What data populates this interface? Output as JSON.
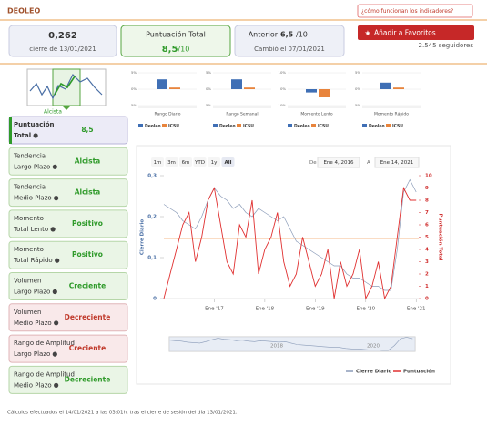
{
  "header": {
    "title": "DEOLEO",
    "help_link": "¿cómo funcionan los indicadores?"
  },
  "summary": {
    "close": "0,262",
    "close_date": "cierre de 13/01/2021",
    "score_label": "Puntuación Total",
    "score": "8,5",
    "score_max": "/10",
    "previous_label": "Anterior",
    "previous": "6,5",
    "previous_max": "/10",
    "changed": "Cambió el 07/01/2021"
  },
  "favorite_button": "Añadir a Favoritos",
  "followers": "2.545 seguidores",
  "trend_icon_label": "Alcista",
  "indicators": [
    {
      "name": [
        "Puntuación",
        "Total"
      ],
      "value": "8,5",
      "color": "#2f9a2a"
    },
    {
      "name": [
        "Tendencia",
        "Largo Plazo"
      ],
      "value": "Alcista",
      "color": "#2f9a2a"
    },
    {
      "name": [
        "Tendencia",
        "Medio Plazo"
      ],
      "value": "Alcista",
      "color": "#2f9a2a"
    },
    {
      "name": [
        "Momento",
        "Total Lento"
      ],
      "value": "Positivo",
      "color": "#2f9a2a"
    },
    {
      "name": [
        "Momento",
        "Total Rápido"
      ],
      "value": "Positivo",
      "color": "#2f9a2a"
    },
    {
      "name": [
        "Volumen",
        "Largo Plazo"
      ],
      "value": "Creciente",
      "color": "#2f9a2a"
    },
    {
      "name": [
        "Volumen",
        "Medio Plazo"
      ],
      "value": "Decreciente",
      "color": "#c0392b"
    },
    {
      "name": [
        "Rango de Amplitud",
        "Largo Plazo"
      ],
      "value": "Creciente",
      "color": "#c0392b"
    },
    {
      "name": [
        "Rango de Amplitud",
        "Medio Plazo"
      ],
      "value": "Decreciente",
      "color": "#2f9a2a"
    }
  ],
  "footer": "Cálculos efectuados el 14/01/2021 a las 03:01h. tras el cierre de sesión del día 13/01/2021.",
  "chart_data": [
    {
      "type": "bar",
      "title": "Rango Diario",
      "categories": [
        "Deoleo",
        "ICSU"
      ],
      "values": [
        3,
        0.5
      ],
      "colors": [
        "#3f6fb5",
        "#e8843c"
      ],
      "ylim": [
        -5,
        5
      ],
      "yticks": [
        {
          "value": 5,
          "label": "5%"
        },
        {
          "value": 0,
          "label": "0%"
        },
        {
          "value": -5,
          "label": "-5%"
        }
      ]
    },
    {
      "type": "bar",
      "title": "Rango Semanal",
      "categories": [
        "Deoleo",
        "ICSU"
      ],
      "values": [
        3,
        0.5
      ],
      "colors": [
        "#3f6fb5",
        "#e8843c"
      ],
      "ylim": [
        -5,
        5
      ],
      "yticks": [
        {
          "value": 5,
          "label": "5%"
        },
        {
          "value": 0,
          "label": "0%"
        },
        {
          "value": -5,
          "label": "-5%"
        }
      ]
    },
    {
      "type": "bar",
      "title": "Momento Lento",
      "categories": [
        "Deoleo",
        "ICSU"
      ],
      "values": [
        -2,
        -5
      ],
      "colors": [
        "#3f6fb5",
        "#e8843c"
      ],
      "ylim": [
        -10,
        10
      ],
      "yticks": [
        {
          "value": 10,
          "label": "10%"
        },
        {
          "value": 0,
          "label": "0%"
        },
        {
          "value": -10,
          "label": "-10%"
        }
      ]
    },
    {
      "type": "bar",
      "title": "Momento Rápido",
      "categories": [
        "Deoleo",
        "ICSU"
      ],
      "values": [
        2,
        0.5
      ],
      "colors": [
        "#3f6fb5",
        "#e8843c"
      ],
      "ylim": [
        -5,
        5
      ],
      "yticks": [
        {
          "value": 5,
          "label": "5%"
        },
        {
          "value": 0,
          "label": "0%"
        },
        {
          "value": -5,
          "label": "-5%"
        }
      ]
    },
    {
      "type": "line",
      "x": [
        2016,
        2016.125,
        2016.25,
        2016.375,
        2016.5,
        2016.625,
        2016.75,
        2016.875,
        2017,
        2017.125,
        2017.25,
        2017.375,
        2017.5,
        2017.625,
        2017.75,
        2017.875,
        2018,
        2018.125,
        2018.25,
        2018.375,
        2018.5,
        2018.625,
        2018.75,
        2018.875,
        2019,
        2019.125,
        2019.25,
        2019.375,
        2019.5,
        2019.625,
        2019.75,
        2019.875,
        2020,
        2020.125,
        2020.25,
        2020.375,
        2020.5,
        2020.625,
        2020.75,
        2020.875,
        2021
      ],
      "series": [
        {
          "name": "Cierre Diario",
          "color": "#8a9bb8",
          "values": [
            0.23,
            0.22,
            0.21,
            0.19,
            0.18,
            0.17,
            0.2,
            0.24,
            0.27,
            0.25,
            0.24,
            0.22,
            0.23,
            0.21,
            0.2,
            0.22,
            0.21,
            0.2,
            0.19,
            0.2,
            0.17,
            0.14,
            0.13,
            0.12,
            0.11,
            0.1,
            0.09,
            0.08,
            0.08,
            0.06,
            0.05,
            0.05,
            0.04,
            0.03,
            0.03,
            0.02,
            0.02,
            0.12,
            0.26,
            0.29,
            0.26
          ]
        },
        {
          "name": "Puntuación",
          "color": "#e03030",
          "axis": "y2",
          "values": [
            0,
            2,
            4,
            6,
            7,
            3,
            5,
            8,
            9,
            6,
            3,
            2,
            6,
            5,
            8,
            2,
            4,
            5,
            7,
            3,
            1,
            2,
            5,
            3,
            1,
            2,
            4,
            0,
            3,
            1,
            2,
            4,
            0,
            1,
            3,
            0,
            1,
            5,
            9,
            8,
            8
          ]
        }
      ],
      "ylabel": "Cierre Diario",
      "y2label": "Puntuación Total",
      "xlim": [
        2016,
        2021.05
      ],
      "xticks": [
        {
          "value": 2017,
          "label": "Ene '17"
        },
        {
          "value": 2018,
          "label": "Ene '18"
        },
        {
          "value": 2019,
          "label": "Ene '19"
        },
        {
          "value": 2020,
          "label": "Ene '20"
        },
        {
          "value": 2021,
          "label": "Ene '21"
        }
      ],
      "ylim": [
        0,
        0.3
      ],
      "yticks": [
        0,
        {
          "value": 0.1,
          "label": "0,1"
        },
        {
          "value": 0.2,
          "label": "0,2"
        },
        {
          "value": 0.3,
          "label": "0,3"
        }
      ],
      "y2lim": [
        0,
        10
      ],
      "y2ticks": [
        0,
        1,
        2,
        3,
        4,
        5,
        6,
        7,
        8,
        9,
        10
      ],
      "range_buttons": [
        "1m",
        "3m",
        "6m",
        "YTD",
        "1y",
        "All"
      ],
      "range_from_label": "De",
      "range_from": "Ene 4, 2016",
      "range_to_label": "A",
      "range_to": "Ene 14, 2021",
      "navigator_labels": [
        "2018",
        "2020"
      ]
    }
  ]
}
